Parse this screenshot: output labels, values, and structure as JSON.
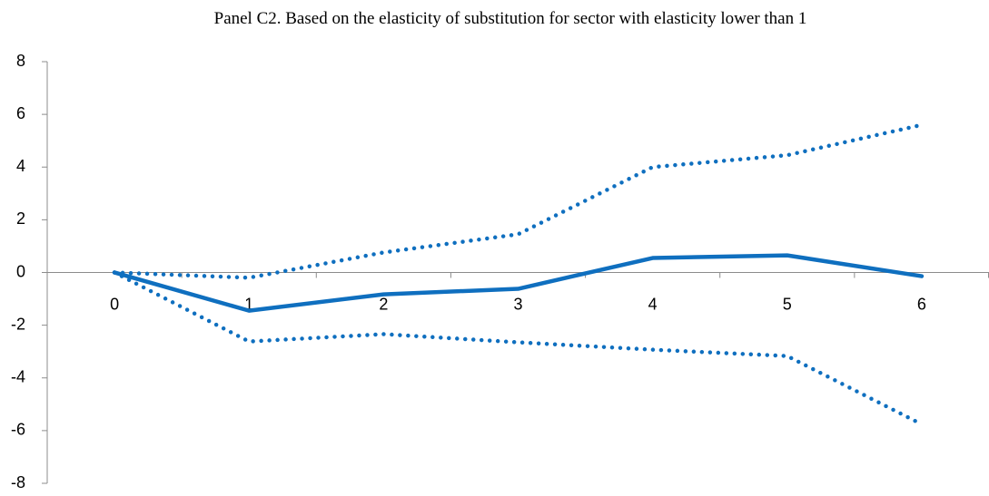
{
  "chart_data": {
    "type": "line",
    "title": "Panel C2. Based on the elasticity of substitution for sector with elasticity lower than 1",
    "categories": [
      "0",
      "1",
      "2",
      "3",
      "4",
      "5",
      "6"
    ],
    "series": [
      {
        "color": "#0f6fbf",
        "style": "solid",
        "values": [
          0,
          -1.45,
          -0.83,
          -0.62,
          0.55,
          0.65,
          -0.14
        ]
      },
      {
        "color": "#0f6fbf",
        "style": "dotted",
        "values": [
          0,
          -0.2,
          0.76,
          1.45,
          4.0,
          4.45,
          5.6
        ]
      },
      {
        "color": "#0f6fbf",
        "style": "dotted",
        "values": [
          0,
          -2.62,
          -2.34,
          -2.65,
          -2.93,
          -3.17,
          -5.76
        ]
      }
    ],
    "ylim": [
      -8,
      8
    ],
    "yticks": [
      -8,
      -6,
      -4,
      -2,
      0,
      2,
      4,
      6,
      8
    ],
    "grid": false
  }
}
